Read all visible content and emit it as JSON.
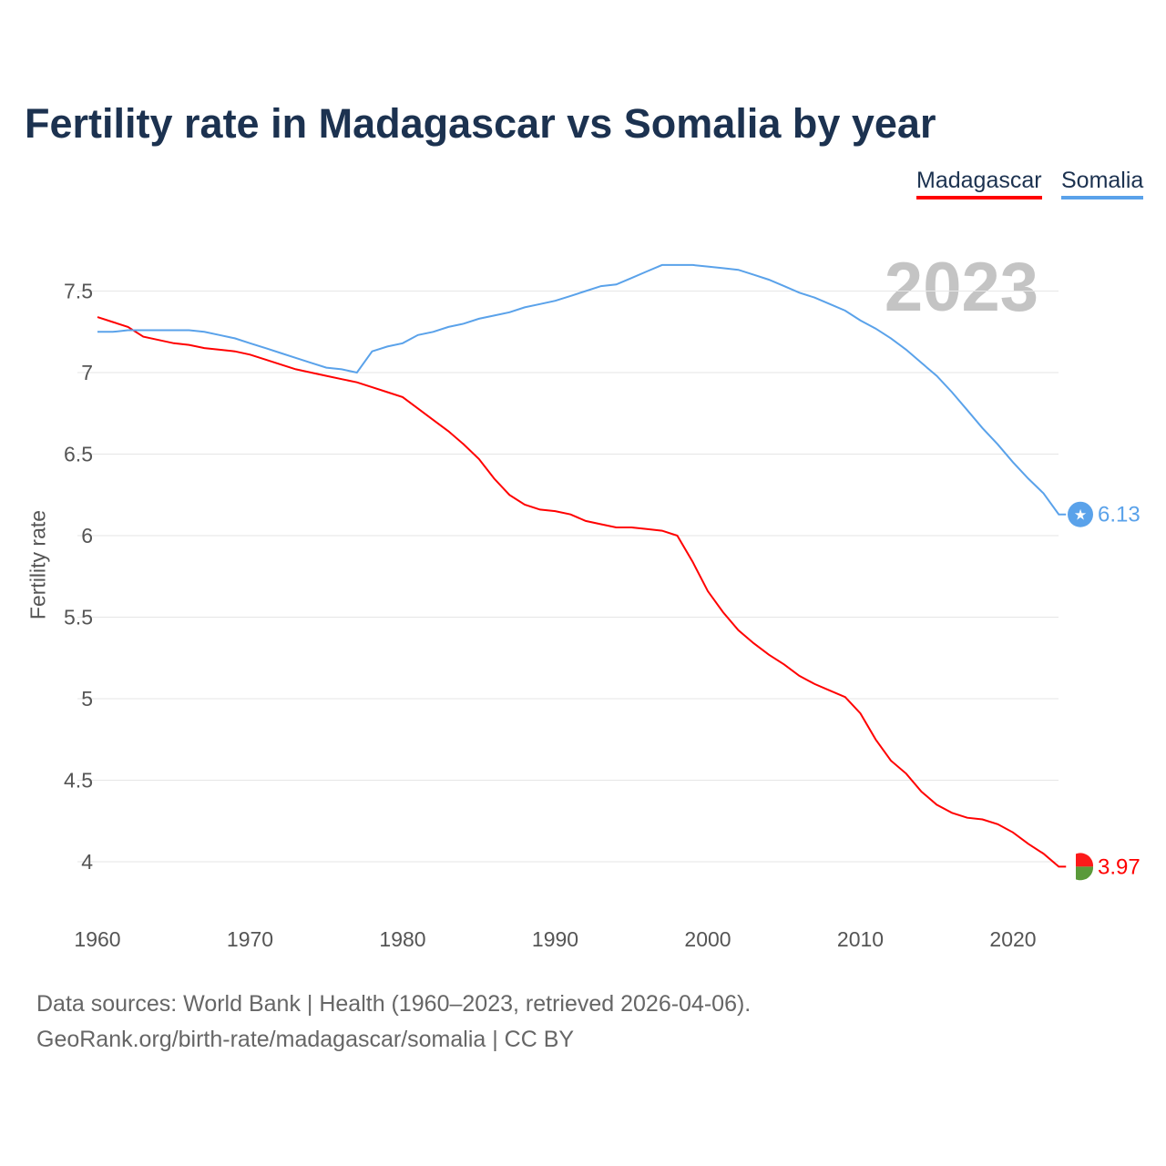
{
  "chart_data": {
    "type": "line",
    "title": "Fertility rate in Madagascar vs Somalia by year",
    "xlabel": "",
    "ylabel": "Fertility rate",
    "xlim": [
      1960,
      2023
    ],
    "ylim": [
      3.75,
      7.75
    ],
    "xticks": [
      1960,
      1970,
      1980,
      1990,
      2000,
      2010,
      2020
    ],
    "yticks": [
      4,
      4.5,
      5,
      5.5,
      6,
      6.5,
      7,
      7.5
    ],
    "grid": true,
    "legend_placement": "top-right",
    "highlight_year": "2023",
    "x_start": 1960,
    "series": [
      {
        "name": "Madagascar",
        "color": "#ff0000",
        "end_label": "3.97",
        "values": [
          7.34,
          7.31,
          7.28,
          7.22,
          7.2,
          7.18,
          7.17,
          7.15,
          7.14,
          7.13,
          7.11,
          7.08,
          7.05,
          7.02,
          7.0,
          6.98,
          6.96,
          6.94,
          6.91,
          6.88,
          6.85,
          6.78,
          6.71,
          6.64,
          6.56,
          6.47,
          6.35,
          6.25,
          6.19,
          6.16,
          6.15,
          6.13,
          6.09,
          6.07,
          6.05,
          6.05,
          6.04,
          6.03,
          6.0,
          5.84,
          5.66,
          5.53,
          5.42,
          5.34,
          5.27,
          5.21,
          5.14,
          5.09,
          5.05,
          5.01,
          4.91,
          4.75,
          4.62,
          4.54,
          4.43,
          4.35,
          4.3,
          4.27,
          4.26,
          4.23,
          4.18,
          4.11,
          4.05,
          3.97
        ]
      },
      {
        "name": "Somalia",
        "color": "#5aa2ea",
        "end_label": "6.13",
        "values": [
          7.25,
          7.25,
          7.26,
          7.26,
          7.26,
          7.26,
          7.26,
          7.25,
          7.23,
          7.21,
          7.18,
          7.15,
          7.12,
          7.09,
          7.06,
          7.03,
          7.02,
          7.0,
          7.13,
          7.16,
          7.18,
          7.23,
          7.25,
          7.28,
          7.3,
          7.33,
          7.35,
          7.37,
          7.4,
          7.42,
          7.44,
          7.47,
          7.5,
          7.53,
          7.54,
          7.58,
          7.62,
          7.66,
          7.66,
          7.66,
          7.65,
          7.64,
          7.63,
          7.6,
          7.57,
          7.53,
          7.49,
          7.46,
          7.42,
          7.38,
          7.32,
          7.27,
          7.21,
          7.14,
          7.06,
          6.98,
          6.88,
          6.77,
          6.66,
          6.56,
          6.45,
          6.35,
          6.26,
          6.13
        ]
      }
    ]
  },
  "footer": {
    "line1": "Data sources: World Bank | Health (1960–2023, retrieved 2026-04-06).",
    "line2": "GeoRank.org/birth-rate/madagascar/somalia | CC BY"
  }
}
